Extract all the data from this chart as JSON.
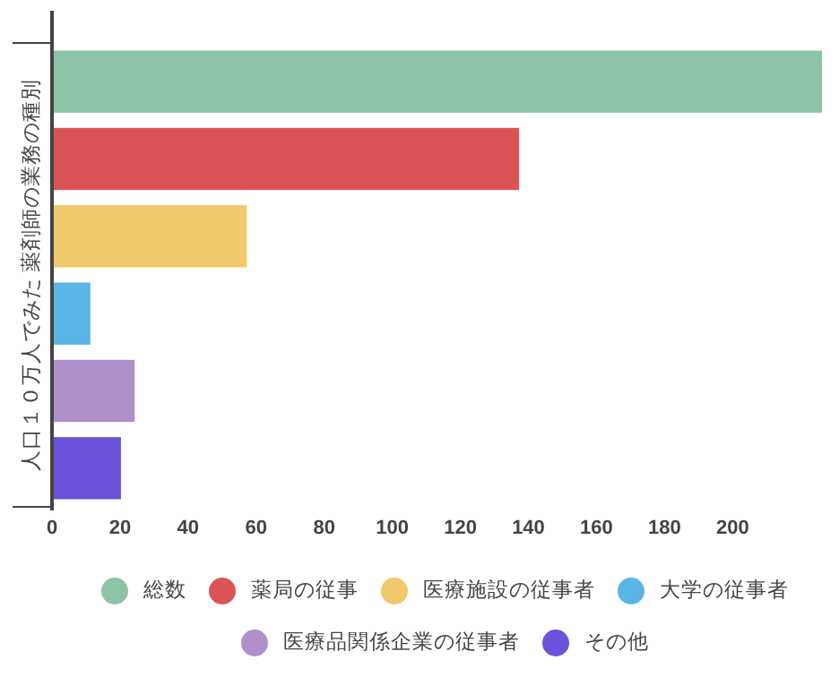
{
  "chart_data": {
    "type": "bar",
    "orientation": "horizontal",
    "ylabel": "人口１０万人でみた 薬剤師の業務の種別",
    "categories": [
      null,
      null,
      null,
      null,
      null,
      null
    ],
    "series": [
      {
        "name": "総数",
        "color": "#8dc3a7",
        "values": [
          226,
          null,
          null,
          null,
          null,
          null
        ]
      },
      {
        "name": "薬局の従事",
        "color": "#dc5356",
        "values": [
          null,
          137,
          null,
          null,
          null,
          null
        ]
      },
      {
        "name": "医療施設の従事者",
        "color": "#f0c96a",
        "values": [
          null,
          null,
          57,
          null,
          null,
          null
        ]
      },
      {
        "name": "大学の従事者",
        "color": "#5ab4e5",
        "values": [
          null,
          null,
          null,
          11,
          null,
          null
        ]
      },
      {
        "name": "医療品関係企業の従事者",
        "color": "#ad91c8",
        "values": [
          null,
          null,
          null,
          null,
          24,
          null
        ]
      },
      {
        "name": "その他",
        "color": "#6c51da",
        "values": [
          null,
          null,
          null,
          null,
          null,
          20
        ]
      }
    ],
    "xlim": [
      0,
      226
    ],
    "xticks": [
      0,
      20,
      40,
      60,
      80,
      100,
      120,
      140,
      160,
      180,
      200
    ],
    "legend": "bottom"
  }
}
